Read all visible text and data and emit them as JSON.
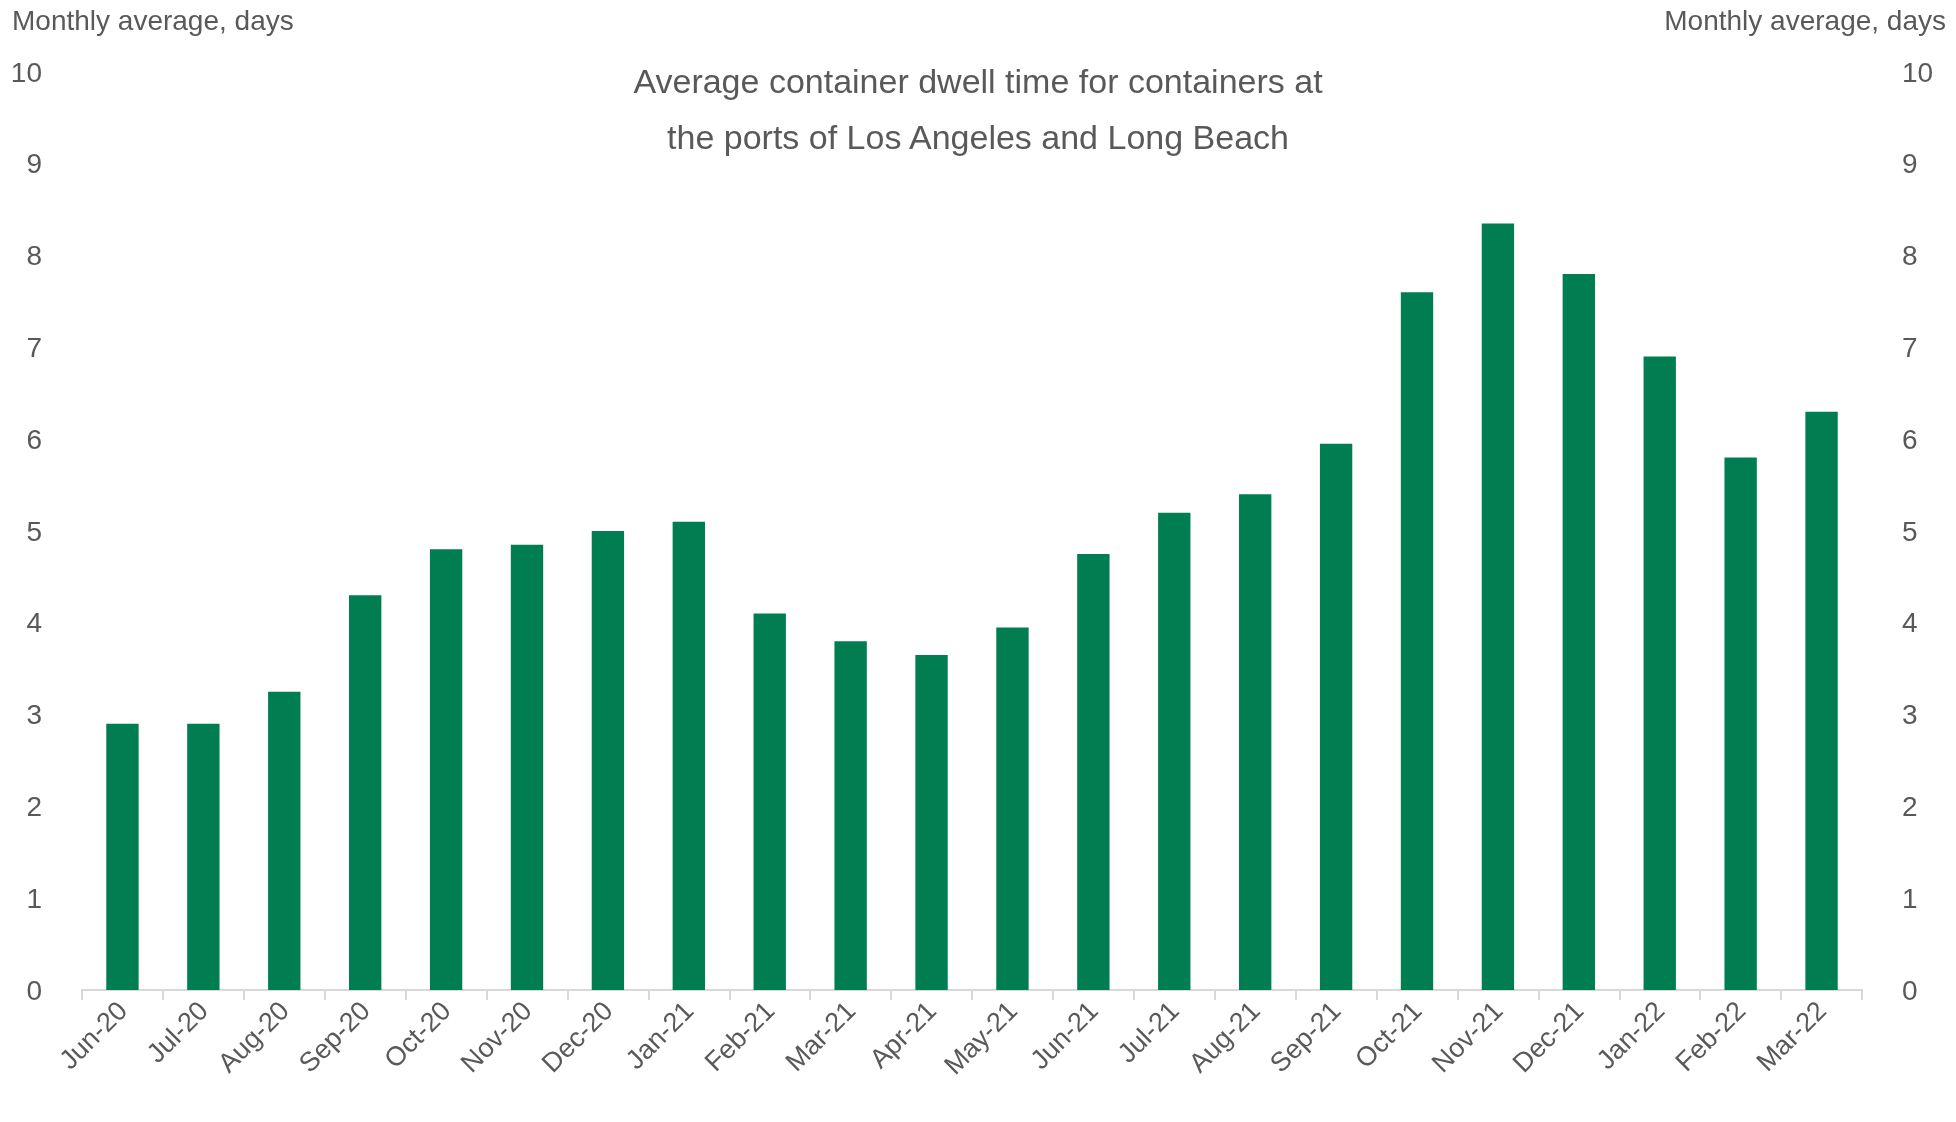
{
  "chart_data": {
    "type": "bar",
    "title": "Average container dwell time for containers at\nthe ports of Los Angeles and Long Beach",
    "ylabel": "Monthly average, days",
    "y2label": "Monthly average, days",
    "categories": [
      "Jun-20",
      "Jul-20",
      "Aug-20",
      "Sep-20",
      "Oct-20",
      "Nov-20",
      "Dec-20",
      "Jan-21",
      "Feb-21",
      "Mar-21",
      "Apr-21",
      "May-21",
      "Jun-21",
      "Jul-21",
      "Aug-21",
      "Sep-21",
      "Oct-21",
      "Nov-21",
      "Dec-21",
      "Jan-22",
      "Feb-22",
      "Mar-22"
    ],
    "values": [
      2.9,
      2.9,
      3.25,
      4.3,
      4.8,
      4.85,
      5.0,
      5.1,
      4.1,
      3.8,
      3.65,
      3.95,
      4.75,
      5.2,
      5.4,
      5.95,
      7.6,
      8.35,
      7.8,
      6.9,
      5.8,
      6.3
    ],
    "color": "#007e52",
    "ylim": [
      0,
      10
    ],
    "yticks": [
      0,
      1,
      2,
      3,
      4,
      5,
      6,
      7,
      8,
      9,
      10
    ],
    "y2lim": [
      0,
      10
    ],
    "y2ticks": [
      0,
      1,
      2,
      3,
      4,
      5,
      6,
      7,
      8,
      9,
      10
    ],
    "grid": false
  }
}
